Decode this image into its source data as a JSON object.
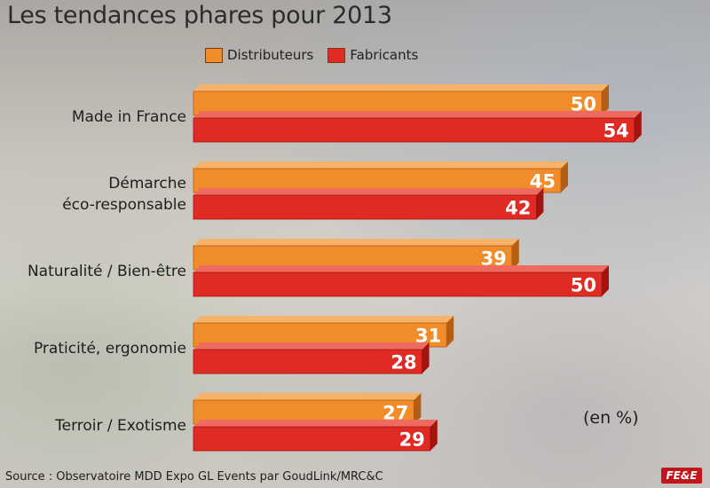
{
  "title": "Les tendances phares pour 2013",
  "unit_label": "(en %)",
  "source": "Source : Observatoire MDD Expo GL Events par GoudLink/MRC&C",
  "logo_text": "FE&E",
  "colors": {
    "distributeurs": "#f08c2a",
    "fabricants": "#e02a24"
  },
  "chart_data": {
    "type": "bar",
    "orientation": "horizontal",
    "title": "Les tendances phares pour 2013",
    "xlabel": "",
    "ylabel": "",
    "legend_position": "top",
    "categories": [
      "Made in France",
      "Démarche\néco-responsable",
      "Naturalité / Bien-être",
      "Praticité, ergonomie",
      "Terroir / Exotisme"
    ],
    "series": [
      {
        "name": "Distributeurs",
        "values": [
          50,
          45,
          39,
          31,
          27
        ]
      },
      {
        "name": "Fabricants",
        "values": [
          54,
          42,
          50,
          28,
          29
        ]
      }
    ]
  }
}
